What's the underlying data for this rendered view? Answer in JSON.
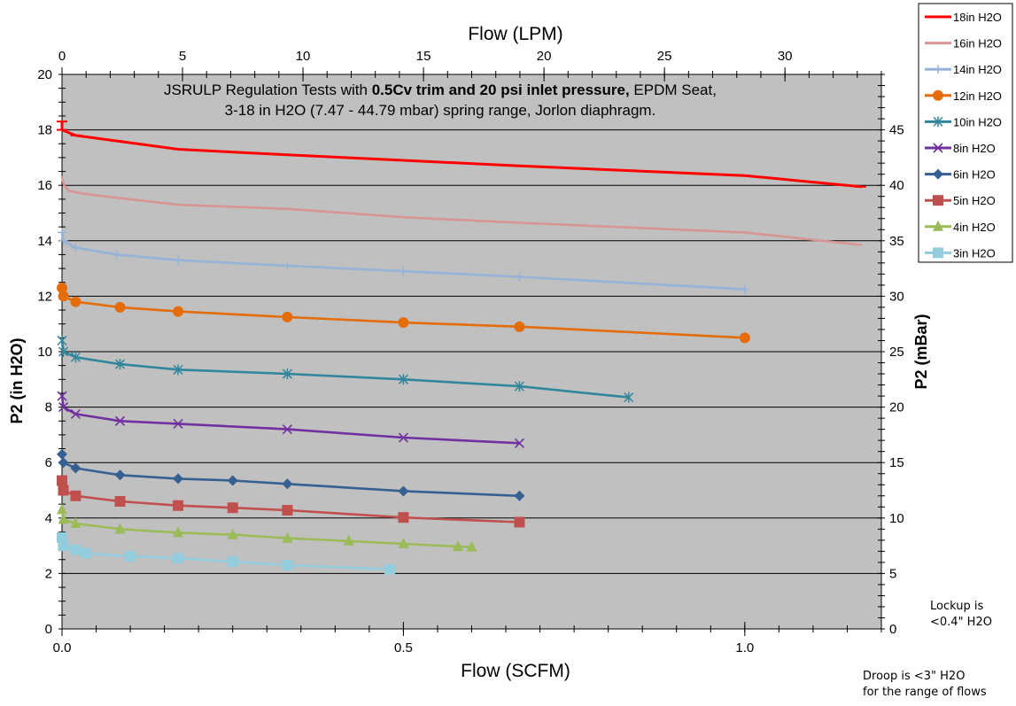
{
  "chart_data": {
    "type": "line",
    "title_line1_plain": "JSRULP Regulation Tests with ",
    "title_line1_bold": "0.5Cv trim and 20 psi inlet pressure,",
    "title_line1_tail": " EPDM Seat,",
    "title_line2": "3-18 in H2O (7.47 - 44.79 mbar) spring range, Jorlon diaphragm.",
    "xlabel": "Flow (SCFM)",
    "ylabel": "P2 (in H2O)",
    "x2label": "Flow (LPM)",
    "y2label": "P2 (mBar)",
    "xlim": [
      0,
      1.2
    ],
    "ylim": [
      0,
      20
    ],
    "x2lim": [
      0,
      34
    ],
    "y2lim": [
      0,
      50
    ],
    "x_ticks": [
      "0.0",
      "0.5",
      "1.0"
    ],
    "x_tick_values": [
      0,
      0.5,
      1.0
    ],
    "y_ticks": [
      "0",
      "2",
      "4",
      "6",
      "8",
      "10",
      "12",
      "14",
      "16",
      "18",
      "20"
    ],
    "y_tick_values": [
      0,
      2,
      4,
      6,
      8,
      10,
      12,
      14,
      16,
      18,
      20
    ],
    "x2_ticks": [
      "0",
      "5",
      "10",
      "15",
      "20",
      "25",
      "30"
    ],
    "x2_tick_values": [
      0,
      5,
      10,
      15,
      20,
      25,
      30
    ],
    "y2_ticks": [
      "0",
      "5",
      "10",
      "15",
      "20",
      "25",
      "30",
      "35",
      "40",
      "45"
    ],
    "y2_tick_values": [
      0,
      5,
      10,
      15,
      20,
      25,
      30,
      35,
      40,
      45
    ],
    "grid": true,
    "plot_background": "#c0c0c0",
    "legend_position": "top-right",
    "series": [
      {
        "name": "18in H2O",
        "color": "#ff0000",
        "marker": "dash",
        "x": [
          0,
          0,
          0.02,
          0.08,
          0.17,
          0.33,
          0.5,
          0.67,
          1.0,
          1.17
        ],
        "y": [
          18.3,
          18.0,
          17.8,
          17.6,
          17.3,
          17.1,
          16.9,
          16.7,
          16.35,
          15.95
        ]
      },
      {
        "name": "16in H2O",
        "color": "#d99594",
        "marker": "none",
        "x": [
          0,
          0.003,
          0.01,
          0.03,
          0.08,
          0.17,
          0.33,
          0.5,
          0.67,
          1.0,
          1.17
        ],
        "y": [
          16.3,
          16.0,
          15.8,
          15.7,
          15.55,
          15.3,
          15.15,
          14.85,
          14.65,
          14.3,
          13.85
        ]
      },
      {
        "name": "14in H2O",
        "color": "#95b3d7",
        "marker": "plus",
        "x": [
          0,
          0.002,
          0.02,
          0.08,
          0.17,
          0.33,
          0.5,
          0.67,
          1.0
        ],
        "y": [
          14.3,
          14.0,
          13.75,
          13.5,
          13.3,
          13.1,
          12.9,
          12.7,
          12.25
        ]
      },
      {
        "name": "12in H2O",
        "color": "#e46c0a",
        "marker": "circle",
        "x": [
          0,
          0.002,
          0.02,
          0.085,
          0.17,
          0.33,
          0.5,
          0.67,
          1.0
        ],
        "y": [
          12.3,
          12.0,
          11.8,
          11.6,
          11.45,
          11.25,
          11.05,
          10.9,
          10.5
        ]
      },
      {
        "name": "10in H2O",
        "color": "#31859c",
        "marker": "star",
        "x": [
          0,
          0.002,
          0.02,
          0.085,
          0.17,
          0.33,
          0.5,
          0.67,
          0.83
        ],
        "y": [
          10.4,
          10.0,
          9.8,
          9.55,
          9.35,
          9.2,
          9.0,
          8.75,
          8.35
        ]
      },
      {
        "name": "8in H2O",
        "color": "#7030a0",
        "marker": "x",
        "x": [
          0,
          0.002,
          0.02,
          0.085,
          0.17,
          0.33,
          0.5,
          0.67
        ],
        "y": [
          8.4,
          8.0,
          7.75,
          7.5,
          7.4,
          7.2,
          6.9,
          6.7
        ]
      },
      {
        "name": "6in H2O",
        "color": "#366092",
        "marker": "diamond",
        "x": [
          0,
          0.002,
          0.02,
          0.085,
          0.17,
          0.25,
          0.33,
          0.5,
          0.67
        ],
        "y": [
          6.3,
          6.0,
          5.8,
          5.55,
          5.42,
          5.35,
          5.23,
          4.97,
          4.8
        ]
      },
      {
        "name": "5in H2O",
        "color": "#c0504d",
        "marker": "square",
        "x": [
          0,
          0.002,
          0.02,
          0.085,
          0.17,
          0.25,
          0.33,
          0.5,
          0.67
        ],
        "y": [
          5.35,
          5.0,
          4.8,
          4.6,
          4.45,
          4.37,
          4.28,
          4.02,
          3.85
        ]
      },
      {
        "name": "4in H2O",
        "color": "#9bbb59",
        "marker": "triangle",
        "x": [
          0,
          0.002,
          0.02,
          0.085,
          0.17,
          0.25,
          0.33,
          0.42,
          0.5,
          0.58,
          0.6
        ],
        "y": [
          4.3,
          3.95,
          3.8,
          3.6,
          3.47,
          3.4,
          3.27,
          3.17,
          3.07,
          2.97,
          2.95
        ]
      },
      {
        "name": "3in H2O",
        "color": "#93cddd",
        "marker": "square",
        "x": [
          0,
          0.002,
          0.02,
          0.035,
          0.1,
          0.17,
          0.25,
          0.33,
          0.48
        ],
        "y": [
          3.3,
          3.0,
          2.85,
          2.73,
          2.62,
          2.55,
          2.43,
          2.3,
          2.15
        ]
      }
    ]
  },
  "notes": {
    "lockup_line1": "Lockup is",
    "lockup_line2": "<0.4\" H2O",
    "droop_line1": "Droop is <3\" H2O",
    "droop_line2": "for the range of flows"
  }
}
